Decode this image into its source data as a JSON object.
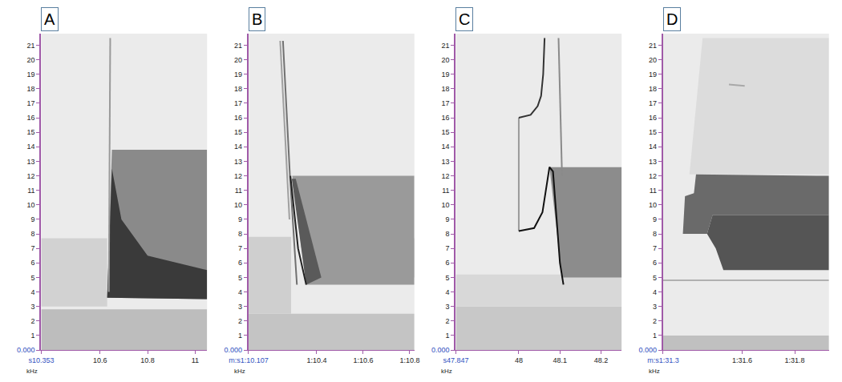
{
  "chart_data": [
    {
      "type": "line",
      "title": "A",
      "y_label": "kHz",
      "grid": false,
      "xlim": [
        10.353,
        11.05
      ],
      "xticks": [
        {
          "value": 10.353,
          "label": "s10.353"
        },
        10.6,
        10.8,
        11
      ],
      "ylim": [
        0,
        21.8
      ],
      "yticks": [
        {
          "value": 0,
          "label": "0.000"
        },
        1,
        2,
        3,
        4,
        5,
        6,
        7,
        8,
        9,
        10,
        11,
        12,
        13,
        14,
        15,
        16,
        17,
        18,
        19,
        20,
        21
      ],
      "series": [
        {
          "type": "area",
          "color": "#bdbdbd",
          "x": [
            10.353,
            11.05,
            11.05,
            10.353
          ],
          "values": [
            0,
            0,
            2.8,
            2.8
          ]
        },
        {
          "type": "area",
          "color": "#d2d2d2",
          "x": [
            10.353,
            10.63,
            10.63,
            10.353
          ],
          "values": [
            3,
            3,
            7.7,
            7.7
          ]
        },
        {
          "type": "area",
          "color": "#8a8a8a",
          "x": [
            10.63,
            10.65,
            11.05,
            11.05
          ],
          "values": [
            3.6,
            13.8,
            13.8,
            3.5
          ]
        },
        {
          "type": "area",
          "color": "#3a3a3a",
          "x": [
            10.63,
            10.65,
            10.69,
            10.8,
            11.05,
            11.05
          ],
          "values": [
            3.6,
            12.5,
            9,
            6.5,
            5.5,
            3.5
          ]
        },
        {
          "type": "line",
          "color": "#9a9a9a",
          "x": [
            10.643,
            10.637
          ],
          "values": [
            21.5,
            4
          ]
        }
      ]
    },
    {
      "type": "line",
      "title": "B",
      "y_label": "kHz",
      "grid": false,
      "xlim": [
        70.107,
        70.82
      ],
      "xticks": [
        {
          "value": 70.107,
          "label": "m:s1:10.107"
        },
        {
          "value": 70.4,
          "label": "1:10.4"
        },
        {
          "value": 70.6,
          "label": "1:10.6"
        },
        {
          "value": 70.8,
          "label": "1:10.8"
        }
      ],
      "ylim": [
        0,
        21.8
      ],
      "yticks": [
        {
          "value": 0,
          "label": "0.000"
        },
        1,
        2,
        3,
        4,
        5,
        6,
        7,
        8,
        9,
        10,
        11,
        12,
        13,
        14,
        15,
        16,
        17,
        18,
        19,
        20,
        21
      ],
      "series": [
        {
          "type": "area",
          "color": "#c4c4c4",
          "x": [
            70.107,
            70.82,
            70.82,
            70.107
          ],
          "values": [
            0,
            0,
            2.5,
            2.5
          ]
        },
        {
          "type": "area",
          "color": "#cfcfcf",
          "x": [
            70.107,
            70.29,
            70.29,
            70.107
          ],
          "values": [
            2.5,
            2.5,
            7.8,
            7.8
          ]
        },
        {
          "type": "area",
          "color": "#bdbdbd",
          "x": [
            70.76,
            70.82,
            70.82,
            70.76
          ],
          "values": [
            5,
            5,
            7.7,
            7.7
          ]
        },
        {
          "type": "area",
          "color": "#9a9a9a",
          "x": [
            70.295,
            70.82,
            70.82,
            70.355
          ],
          "values": [
            12,
            12,
            4.5,
            4.5
          ]
        },
        {
          "type": "area",
          "color": "#5a5a5a",
          "x": [
            70.293,
            70.31,
            70.42,
            70.355
          ],
          "values": [
            11.8,
            11.8,
            5,
            4.5
          ]
        },
        {
          "type": "line",
          "color": "#a0a0a0",
          "x": [
            70.243,
            70.283
          ],
          "values": [
            21.3,
            9
          ]
        },
        {
          "type": "line",
          "color": "#707070",
          "x": [
            70.255,
            70.285,
            70.315
          ],
          "values": [
            21.3,
            12,
            4.5
          ]
        },
        {
          "type": "line",
          "color": "#222222",
          "x": [
            70.287,
            70.32,
            70.355
          ],
          "values": [
            12,
            7,
            4.5
          ]
        }
      ]
    },
    {
      "type": "line",
      "title": "C",
      "y_label": "kHz",
      "grid": false,
      "xlim": [
        47.847,
        48.25
      ],
      "xticks": [
        {
          "value": 47.847,
          "label": "s47.847"
        },
        48,
        48.1,
        48.2
      ],
      "ylim": [
        0,
        21.8
      ],
      "yticks": [
        {
          "value": 0,
          "label": "0.000"
        },
        1,
        2,
        3,
        4,
        5,
        6,
        7,
        8,
        9,
        10,
        11,
        12,
        13,
        14,
        15,
        16,
        17,
        18,
        19,
        20,
        21
      ],
      "series": [
        {
          "type": "area",
          "color": "#c8c8c8",
          "x": [
            47.847,
            48.25,
            48.25,
            47.847
          ],
          "values": [
            0,
            0,
            3,
            3
          ]
        },
        {
          "type": "area",
          "color": "#d8d8d8",
          "x": [
            47.847,
            48.25,
            48.25,
            47.847
          ],
          "values": [
            3,
            3,
            5.2,
            5.2
          ]
        },
        {
          "type": "area",
          "color": "#8c8c8c",
          "x": [
            48.0746,
            48.25,
            48.25,
            48.105
          ],
          "values": [
            12.6,
            12.6,
            5,
            5
          ]
        },
        {
          "type": "line",
          "color": "#9a9a9a",
          "x": [
            48.0,
            48.0
          ],
          "values": [
            8.2,
            16
          ]
        },
        {
          "type": "line",
          "color": "#333333",
          "x": [
            48.0,
            48.0288,
            48.0458,
            48.0542,
            48.0593,
            48.0627
          ],
          "values": [
            16,
            16.2,
            16.8,
            17.5,
            19,
            21.5
          ]
        },
        {
          "type": "line",
          "color": "#111111",
          "x": [
            48.0,
            48.0373,
            48.0576,
            48.0678,
            48.0746,
            48.0831,
            48.0915,
            48.1,
            48.1085
          ],
          "values": [
            8.2,
            8.4,
            9.5,
            11.5,
            12.6,
            12.3,
            9,
            6,
            4.5
          ]
        },
        {
          "type": "line",
          "color": "#8a8a8a",
          "x": [
            48.0966,
            48.1051
          ],
          "values": [
            21.5,
            12
          ]
        }
      ]
    },
    {
      "type": "line",
      "title": "D",
      "y_label": "kHz",
      "grid": false,
      "xlim": [
        91.3,
        91.93
      ],
      "xticks": [
        {
          "value": 91.3,
          "label": "m:s1:31.3"
        },
        {
          "value": 91.6,
          "label": "1:31.6"
        },
        {
          "value": 91.8,
          "label": "1:31.8"
        }
      ],
      "ylim": [
        0,
        21.8
      ],
      "yticks": [
        {
          "value": 0,
          "label": "0.000"
        },
        1,
        2,
        3,
        4,
        5,
        6,
        7,
        8,
        9,
        10,
        11,
        12,
        13,
        14,
        15,
        16,
        17,
        18,
        19,
        20,
        21
      ],
      "series": [
        {
          "type": "area",
          "color": "#c0c0c0",
          "x": [
            91.3,
            91.93,
            91.93,
            91.3
          ],
          "values": [
            0,
            0,
            1,
            1
          ]
        },
        {
          "type": "area",
          "color": "#dcdcdc",
          "x": [
            91.4,
            91.93,
            91.93,
            91.45
          ],
          "values": [
            12.1,
            12.1,
            21.5,
            21.5
          ]
        },
        {
          "type": "area",
          "color": "#6a6a6a",
          "x": [
            91.375,
            91.383,
            91.417,
            91.425,
            91.93,
            91.93,
            91.488,
            91.467
          ],
          "values": [
            8,
            10.6,
            10.8,
            12.1,
            12,
            9.3,
            9.3,
            8
          ]
        },
        {
          "type": "area",
          "color": "#555555",
          "x": [
            91.467,
            91.488,
            91.93,
            91.93,
            91.529,
            91.5
          ],
          "values": [
            8,
            9.3,
            9.3,
            5.5,
            5.5,
            7
          ]
        },
        {
          "type": "line",
          "color": "#b0b0b0",
          "x": [
            91.3,
            91.93
          ],
          "values": [
            4.8,
            4.8
          ]
        },
        {
          "type": "line",
          "color": "#a8a8a8",
          "x": [
            91.55,
            91.61
          ],
          "values": [
            18.3,
            18.2
          ]
        }
      ]
    }
  ]
}
